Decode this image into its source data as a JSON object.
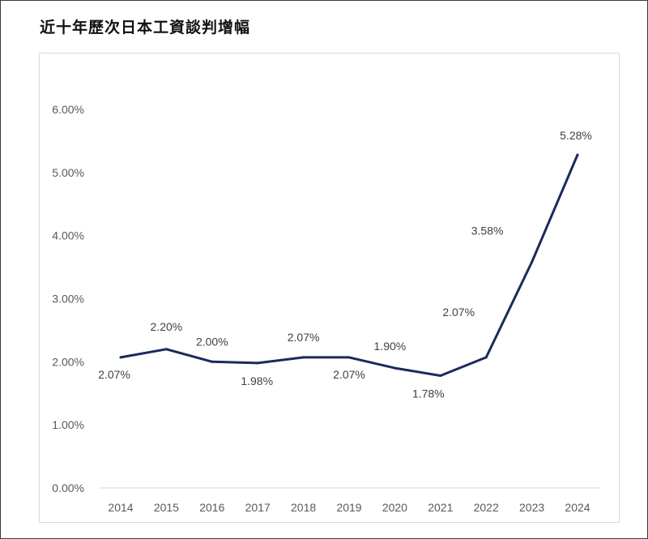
{
  "chart_data": {
    "type": "line",
    "title": "近十年歷次日本工資談判增幅",
    "xlabel": "",
    "ylabel": "",
    "categories": [
      "2014",
      "2015",
      "2016",
      "2017",
      "2018",
      "2019",
      "2020",
      "2021",
      "2022",
      "2023",
      "2024"
    ],
    "series": [
      {
        "values": [
          2.07,
          2.2,
          2.0,
          1.98,
          2.07,
          2.07,
          1.9,
          1.78,
          2.07,
          3.58,
          5.28
        ],
        "labels": [
          "2.07%",
          "2.20%",
          "2.00%",
          "1.98%",
          "2.07%",
          "2.07%",
          "1.90%",
          "1.78%",
          "2.07%",
          "3.58%",
          "5.28%"
        ]
      }
    ],
    "ylim": [
      0,
      6
    ],
    "yticks": [
      0,
      1,
      2,
      3,
      4,
      5,
      6
    ],
    "ytick_labels": [
      "0.00%",
      "1.00%",
      "2.00%",
      "3.00%",
      "4.00%",
      "5.00%",
      "6.00%"
    ],
    "grid": false,
    "legend": "none",
    "colors": {
      "line": "#1b2a5c",
      "axis": "#d9d9d9",
      "text": "#404040"
    }
  }
}
